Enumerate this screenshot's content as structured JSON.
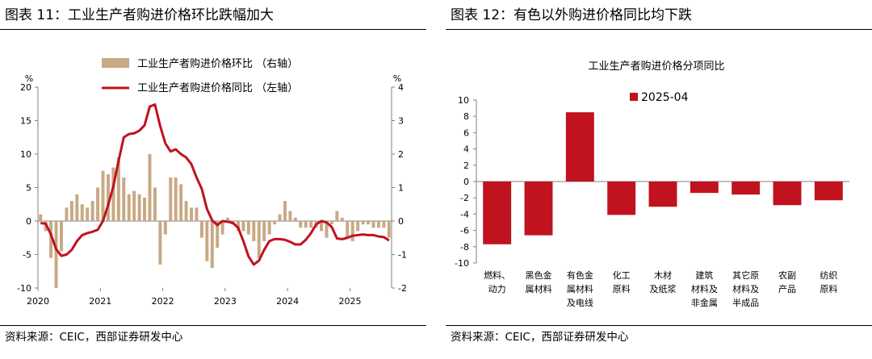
{
  "panels": {
    "left": {
      "header": "图表 11：工业生产者购进价格环比跌幅加大",
      "source": "资料来源：CEIC，西部证券研发中心"
    },
    "right": {
      "header": "图表 12：有色以外购进价格同比均下跌",
      "source": "资料来源：CEIC，西部证券研发中心"
    }
  },
  "chart_data": [
    {
      "type": "bar+line",
      "title": "",
      "left_unit": "%",
      "right_unit": "%",
      "left_axis": {
        "ylim": [
          -10,
          20
        ],
        "ticks": [
          -10,
          -5,
          0,
          5,
          10,
          15,
          20
        ]
      },
      "right_axis": {
        "ylim": [
          -2,
          4
        ],
        "ticks": [
          -2,
          -1,
          0,
          1,
          2,
          3,
          4
        ]
      },
      "x_labels": [
        "2020",
        "2021",
        "2022",
        "2023",
        "2024",
        "2025"
      ],
      "legend_position": "top-center",
      "colors": {
        "bar": "#c8a985",
        "line": "#c0121f"
      },
      "series": [
        {
          "name": "工业生产者购进价格环比 （右轴）",
          "type": "bar",
          "axis": "right",
          "start": "2020-01",
          "values": [
            0.2,
            -0.3,
            -1.1,
            -2.0,
            -0.9,
            0.4,
            0.6,
            0.8,
            0.5,
            0.4,
            0.6,
            1.0,
            1.5,
            1.4,
            1.6,
            1.9,
            1.3,
            0.8,
            0.9,
            0.8,
            0.7,
            2.0,
            1.0,
            -1.3,
            -0.4,
            1.3,
            1.3,
            1.1,
            0.6,
            0.4,
            0.4,
            -0.5,
            -1.2,
            -1.4,
            -0.8,
            -0.4,
            0.1,
            -0.1,
            -0.3,
            -0.3,
            -0.4,
            -0.6,
            -1.1,
            -0.6,
            -0.4,
            -0.1,
            0.2,
            0.6,
            0.3,
            0.1,
            -0.2,
            -0.2,
            -0.2,
            -0.2,
            -0.3,
            -0.5,
            -0.1,
            0.3,
            0.1,
            -0.5,
            -0.6,
            -0.3,
            -0.1,
            -0.1,
            -0.2,
            -0.2,
            -0.2,
            -0.5
          ]
        },
        {
          "name": "工业生产者购进价格同比 （左轴）",
          "type": "line",
          "axis": "left",
          "start": "2020-01",
          "values": [
            -0.3,
            -0.4,
            -2.0,
            -4.2,
            -5.2,
            -5.0,
            -4.3,
            -3.0,
            -2.1,
            -1.8,
            -1.6,
            -1.3,
            0.0,
            2.4,
            5.2,
            9.0,
            12.5,
            13.0,
            13.1,
            13.5,
            14.3,
            17.1,
            17.4,
            14.2,
            11.6,
            10.4,
            10.7,
            10.0,
            9.5,
            8.5,
            6.5,
            4.8,
            1.8,
            0.1,
            -0.6,
            0.0,
            -0.1,
            -0.3,
            -1.0,
            -3.0,
            -5.3,
            -6.5,
            -5.9,
            -4.3,
            -3.0,
            -2.7,
            -2.7,
            -2.8,
            -3.1,
            -3.5,
            -3.5,
            -2.8,
            -1.8,
            -0.5,
            0.0,
            -0.2,
            -0.9,
            -2.6,
            -2.7,
            -2.5,
            -2.2,
            -2.1,
            -2.0,
            -2.1,
            -2.1,
            -2.3,
            -2.4,
            -2.9
          ]
        }
      ]
    },
    {
      "type": "bar",
      "title": "工业生产者购进价格分项同比",
      "legend_position": "top-center",
      "ylim": [
        -10,
        10
      ],
      "ticks": [
        -10,
        -8,
        -6,
        -4,
        -2,
        0,
        2,
        4,
        6,
        8,
        10
      ],
      "categories": [
        [
          "燃料、",
          "动力"
        ],
        [
          "黑色金",
          "属材料"
        ],
        [
          "有色金",
          "属材料",
          "及电线"
        ],
        [
          "化工",
          "原料"
        ],
        [
          "木材",
          "及纸浆"
        ],
        [
          "建筑",
          "材料及",
          "非金属"
        ],
        [
          "其它原",
          "材料及",
          "半成品"
        ],
        [
          "农副",
          "产品"
        ],
        [
          "纺织",
          "原料"
        ]
      ],
      "colors": {
        "bar": "#c0121f"
      },
      "series": [
        {
          "name": "2025-04",
          "values": [
            -7.7,
            -6.6,
            8.5,
            -4.1,
            -3.1,
            -1.4,
            -1.6,
            -2.9,
            -2.3
          ]
        }
      ]
    }
  ]
}
